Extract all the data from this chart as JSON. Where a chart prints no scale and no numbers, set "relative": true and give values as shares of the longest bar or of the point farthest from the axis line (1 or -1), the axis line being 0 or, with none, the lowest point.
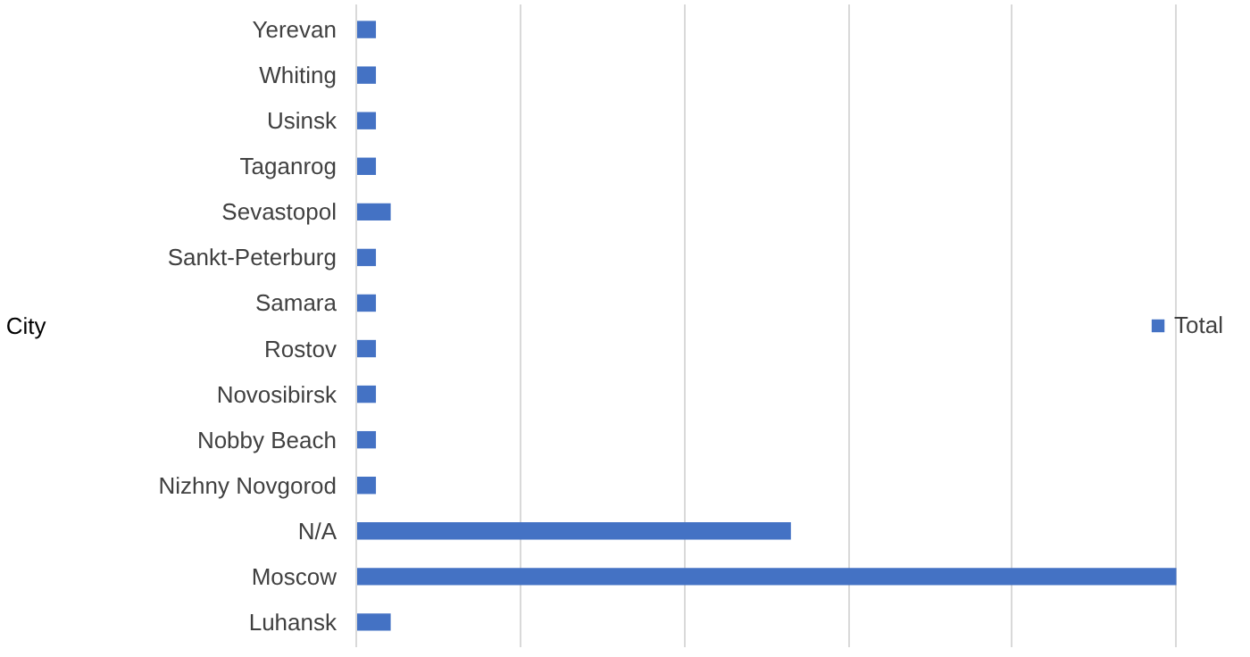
{
  "chart_data": {
    "type": "bar",
    "orientation": "horizontal",
    "relative": true,
    "ylabel": "City",
    "categories": [
      "Yerevan",
      "Whiting",
      "Usinsk",
      "Taganrog",
      "Sevastopol",
      "Sankt-Peterburg",
      "Samara",
      "Rostov",
      "Novosibirsk",
      "Nobby Beach",
      "Nizhny Novgorod",
      "N/A",
      "Moscow",
      "Luhansk"
    ],
    "series": [
      {
        "name": "Total",
        "color": "#4472c4",
        "values": [
          0.024,
          0.024,
          0.024,
          0.024,
          0.042,
          0.024,
          0.024,
          0.024,
          0.024,
          0.024,
          0.024,
          0.53,
          1,
          0.042
        ]
      }
    ],
    "grid": "x",
    "legend": "right"
  }
}
